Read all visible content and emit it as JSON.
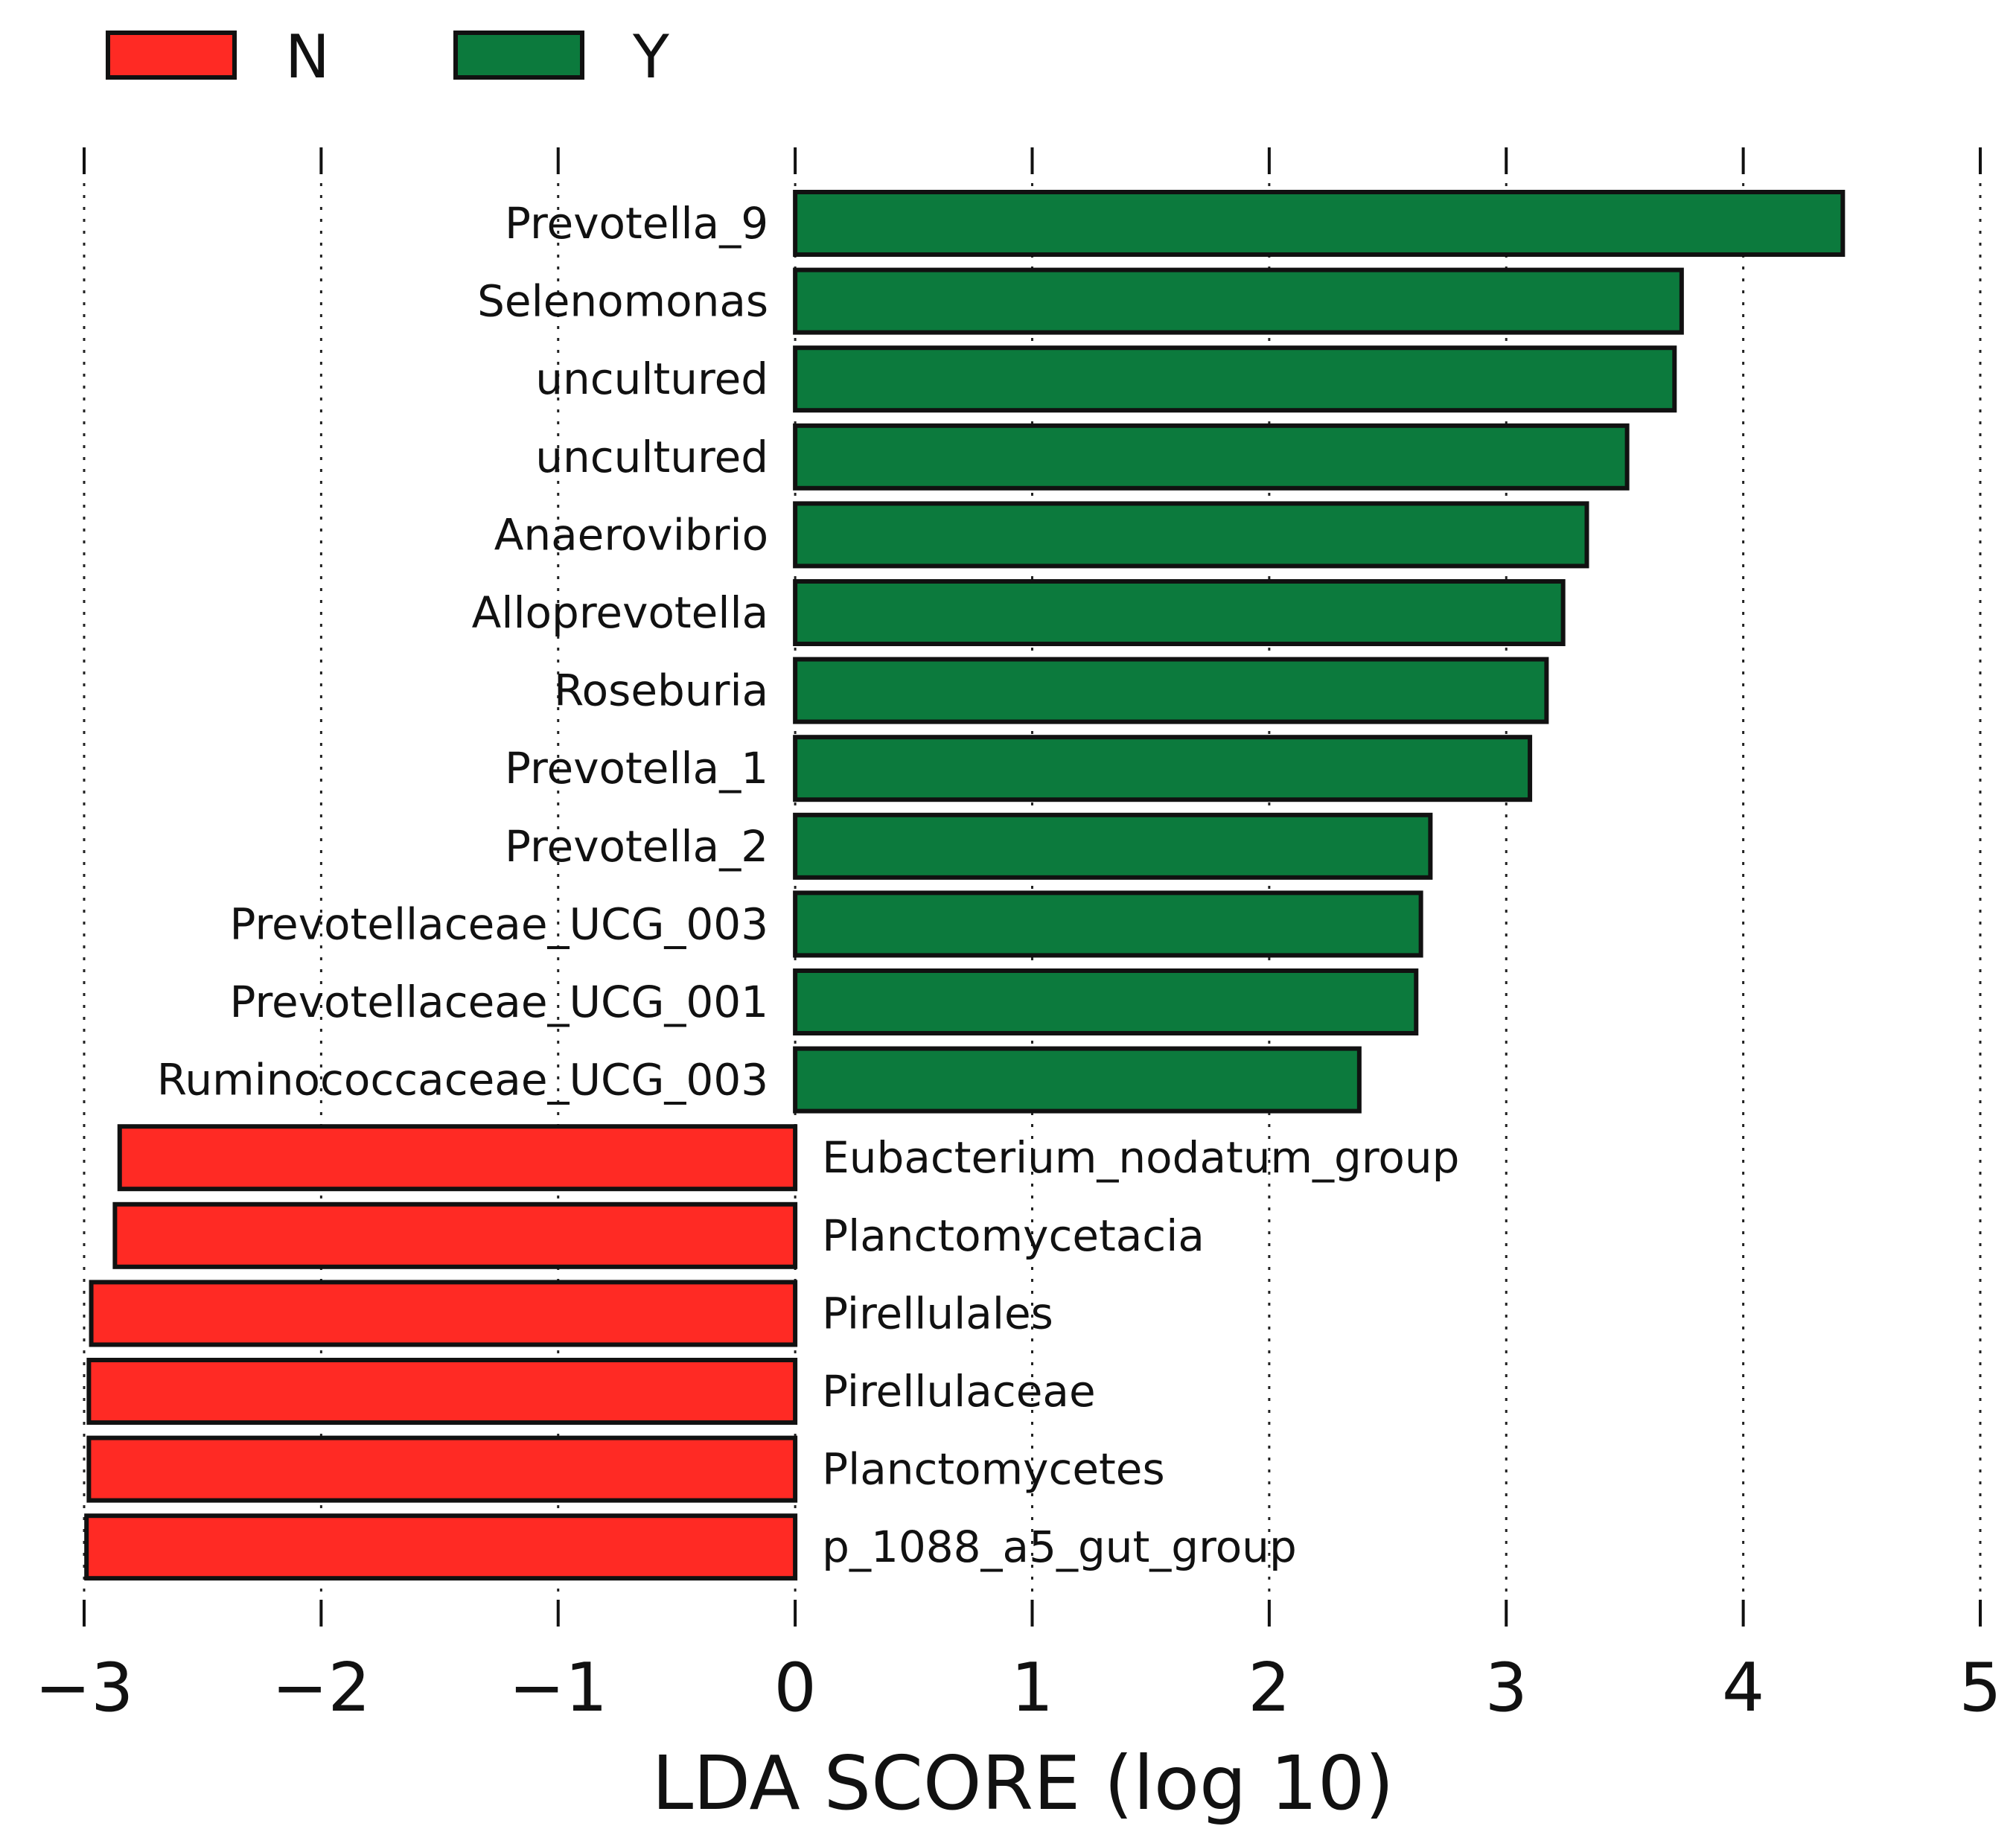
{
  "chart_data": {
    "type": "bar",
    "orientation": "horizontal",
    "title": "",
    "xlabel": "LDA SCORE (log 10)",
    "ylabel": "",
    "xlim": [
      -3,
      5
    ],
    "xticks": [
      -3,
      -2,
      -1,
      0,
      1,
      2,
      3,
      4,
      5
    ],
    "xtick_labels": [
      "−3",
      "−2",
      "−1",
      "0",
      "1",
      "2",
      "3",
      "4",
      "5"
    ],
    "grid": "vertical dotted",
    "legend_position": "top-left",
    "legend": [
      {
        "key": "N",
        "label": "N",
        "color": "#ff2a24"
      },
      {
        "key": "Y",
        "label": "Y",
        "color": "#0c7a3d"
      }
    ],
    "series": [
      {
        "name": "Y",
        "color": "#0c7a3d",
        "categories": [
          "Prevotella_9",
          "Selenomonas",
          "uncultured",
          "uncultured",
          "Anaerovibrio",
          "Alloprevotella",
          "Roseburia",
          "Prevotella_1",
          "Prevotella_2",
          "Prevotellaceae_UCG_003",
          "Prevotellaceae_UCG_001",
          "Ruminococcaceae_UCG_003"
        ],
        "values": [
          4.42,
          3.74,
          3.71,
          3.51,
          3.34,
          3.24,
          3.17,
          3.1,
          2.68,
          2.64,
          2.62,
          2.38
        ]
      },
      {
        "name": "N",
        "color": "#ff2a24",
        "categories": [
          "Eubacterium_nodatum_group",
          "Planctomycetacia",
          "Pirellulales",
          "Pirellulaceae",
          "Planctomycetes",
          "p_1088_a5_gut_group"
        ],
        "values": [
          -2.85,
          -2.87,
          -2.97,
          -2.98,
          -2.98,
          -2.99
        ]
      }
    ]
  }
}
